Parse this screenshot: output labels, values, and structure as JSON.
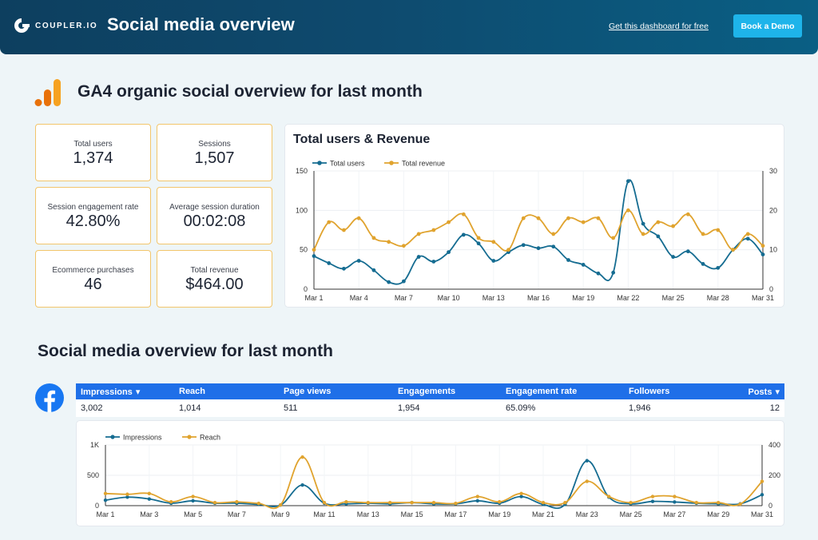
{
  "header": {
    "logo_text": "COUPLER.IO",
    "title": "Social media overview",
    "get_dashboard_link": "Get this dashboard for free",
    "demo_button": "Book a Demo"
  },
  "colors": {
    "teal": "#156c91",
    "orange": "#e0a32e",
    "table_header": "#1f6fe8",
    "accent_button": "#1eb4ea"
  },
  "ga4": {
    "icon": "google-analytics-icon",
    "title": "GA4 organic social overview for last month",
    "kpis": [
      {
        "label": "Total users",
        "value": "1,374"
      },
      {
        "label": "Sessions",
        "value": "1,507"
      },
      {
        "label": "Session engagement rate",
        "value": "42.80%"
      },
      {
        "label": "Average session duration",
        "value": "00:02:08"
      },
      {
        "label": "Ecommerce purchases",
        "value": "46"
      },
      {
        "label": "Total revenue",
        "value": "$464.00"
      }
    ]
  },
  "social": {
    "title": "Social media overview for last month",
    "facebook": {
      "icon": "facebook-icon",
      "columns": [
        "Impressions",
        "Reach",
        "Page views",
        "Engagements",
        "Engagement rate",
        "Followers",
        "Posts"
      ],
      "sort_indicator": "▾",
      "row": [
        "3,002",
        "1,014",
        "511",
        "1,954",
        "65.09%",
        "1,946",
        "12"
      ]
    }
  },
  "chart_data": [
    {
      "type": "line",
      "title": "Total users & Revenue",
      "categories": [
        "Mar 1",
        "Mar 2",
        "Mar 3",
        "Mar 4",
        "Mar 5",
        "Mar 6",
        "Mar 7",
        "Mar 8",
        "Mar 9",
        "Mar 10",
        "Mar 11",
        "Mar 12",
        "Mar 13",
        "Mar 14",
        "Mar 15",
        "Mar 16",
        "Mar 17",
        "Mar 18",
        "Mar 19",
        "Mar 20",
        "Mar 21",
        "Mar 22",
        "Mar 23",
        "Mar 24",
        "Mar 25",
        "Mar 26",
        "Mar 27",
        "Mar 28",
        "Mar 29",
        "Mar 30",
        "Mar 31"
      ],
      "tick_labels": [
        "Mar 1",
        "Mar 4",
        "Mar 7",
        "Mar 10",
        "Mar 13",
        "Mar 16",
        "Mar 19",
        "Mar 22",
        "Mar 25",
        "Mar 28",
        "Mar 31"
      ],
      "series": [
        {
          "name": "Total users",
          "axis": "left",
          "color": "#156c91",
          "values": [
            42,
            33,
            26,
            36,
            24,
            9,
            10,
            41,
            35,
            47,
            69,
            58,
            36,
            47,
            56,
            52,
            54,
            37,
            31,
            20,
            21,
            137,
            83,
            67,
            41,
            48,
            32,
            27,
            50,
            64,
            44
          ]
        },
        {
          "name": "Total revenue",
          "axis": "right",
          "color": "#e0a32e",
          "values": [
            10,
            17,
            15,
            18,
            13,
            12,
            11,
            14,
            15,
            17,
            19,
            13,
            12,
            10,
            18,
            18,
            14,
            18,
            17,
            18,
            13,
            20,
            14,
            17,
            16,
            19,
            14,
            15,
            10,
            14,
            11
          ]
        }
      ],
      "ylim_left": [
        0,
        150
      ],
      "yticks_left": [
        0,
        50,
        100,
        150
      ],
      "ylim_right": [
        0,
        30
      ],
      "yticks_right": [
        0,
        10,
        20,
        30
      ],
      "legend": "top-left"
    },
    {
      "type": "line",
      "title": "",
      "categories": [
        "Mar 1",
        "Mar 2",
        "Mar 3",
        "Mar 4",
        "Mar 5",
        "Mar 6",
        "Mar 7",
        "Mar 8",
        "Mar 9",
        "Mar 10",
        "Mar 11",
        "Mar 12",
        "Mar 13",
        "Mar 14",
        "Mar 15",
        "Mar 16",
        "Mar 17",
        "Mar 18",
        "Mar 19",
        "Mar 20",
        "Mar 21",
        "Mar 22",
        "Mar 23",
        "Mar 24",
        "Mar 25",
        "Mar 26",
        "Mar 27",
        "Mar 28",
        "Mar 29",
        "Mar 30",
        "Mar 31"
      ],
      "tick_labels": [
        "Mar 1",
        "Mar 3",
        "Mar 5",
        "Mar 7",
        "Mar 9",
        "Mar 11",
        "Mar 13",
        "Mar 15",
        "Mar 17",
        "Mar 19",
        "Mar 21",
        "Mar 23",
        "Mar 25",
        "Mar 27",
        "Mar 29",
        "Mar 31"
      ],
      "series": [
        {
          "name": "Impressions",
          "axis": "left",
          "color": "#156c91",
          "values": [
            90,
            140,
            110,
            40,
            80,
            40,
            40,
            20,
            10,
            340,
            40,
            30,
            40,
            30,
            50,
            30,
            30,
            80,
            40,
            150,
            20,
            20,
            740,
            140,
            30,
            70,
            60,
            40,
            30,
            30,
            180
          ]
        },
        {
          "name": "Reach",
          "axis": "right",
          "color": "#e0a32e",
          "values": [
            80,
            75,
            80,
            25,
            60,
            20,
            25,
            15,
            5,
            320,
            20,
            25,
            20,
            20,
            20,
            20,
            15,
            60,
            25,
            80,
            20,
            20,
            160,
            60,
            20,
            60,
            60,
            20,
            20,
            10,
            160
          ]
        }
      ],
      "ylim_left": [
        0,
        1000
      ],
      "yticks_left": [
        "0",
        "500",
        "1K"
      ],
      "ylim_right": [
        0,
        400
      ],
      "yticks_right": [
        "0",
        "200",
        "400"
      ],
      "legend": "top-left"
    }
  ]
}
